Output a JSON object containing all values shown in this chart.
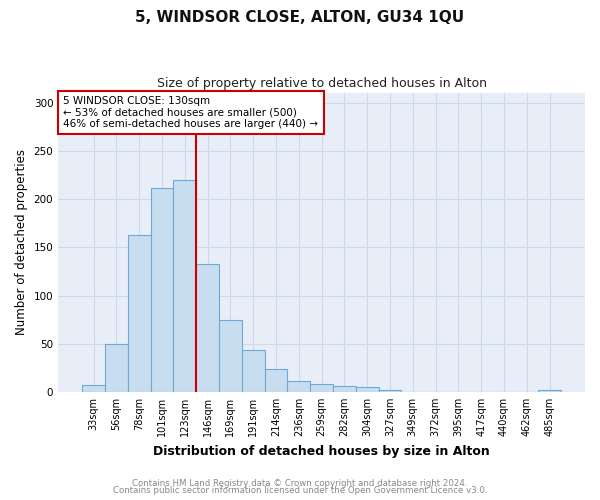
{
  "title": "5, WINDSOR CLOSE, ALTON, GU34 1QU",
  "subtitle": "Size of property relative to detached houses in Alton",
  "xlabel": "Distribution of detached houses by size in Alton",
  "ylabel": "Number of detached properties",
  "bar_labels": [
    "33sqm",
    "56sqm",
    "78sqm",
    "101sqm",
    "123sqm",
    "146sqm",
    "169sqm",
    "191sqm",
    "214sqm",
    "236sqm",
    "259sqm",
    "282sqm",
    "304sqm",
    "327sqm",
    "349sqm",
    "372sqm",
    "395sqm",
    "417sqm",
    "440sqm",
    "462sqm",
    "485sqm"
  ],
  "bar_values": [
    7,
    50,
    163,
    212,
    220,
    133,
    75,
    43,
    24,
    11,
    8,
    6,
    5,
    2,
    0,
    0,
    0,
    0,
    0,
    0,
    2
  ],
  "bar_color": "#c9ddf0",
  "bar_edge_color": "#6aaad4",
  "vline_x_index": 4,
  "vline_color": "#cc0000",
  "annotation_text": "5 WINDSOR CLOSE: 130sqm\n← 53% of detached houses are smaller (500)\n46% of semi-detached houses are larger (440) →",
  "annotation_box_color": "#ffffff",
  "annotation_box_edge_color": "#cc0000",
  "ylim": [
    0,
    310
  ],
  "yticks": [
    0,
    50,
    100,
    150,
    200,
    250,
    300
  ],
  "grid_color": "#cdd8e8",
  "plot_bg_color": "#e8eef8",
  "fig_bg_color": "#ffffff",
  "footer_line1": "Contains HM Land Registry data © Crown copyright and database right 2024.",
  "footer_line2": "Contains public sector information licensed under the Open Government Licence v3.0.",
  "footer_color": "#888888"
}
